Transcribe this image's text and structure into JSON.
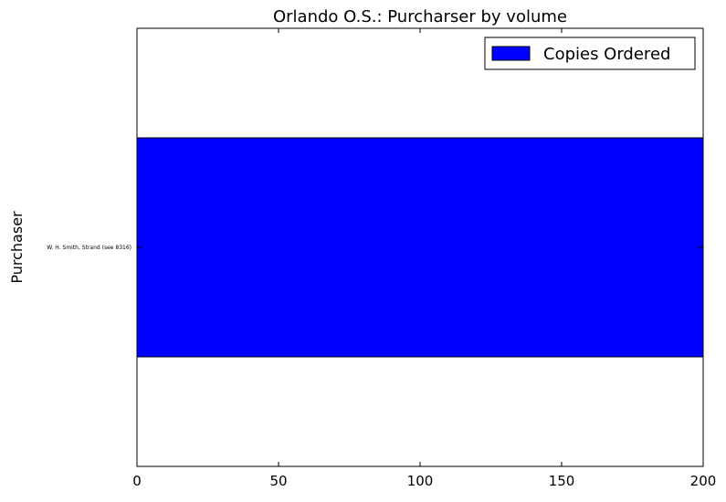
{
  "chart_data": {
    "type": "bar",
    "orientation": "horizontal",
    "title": "Orlando O.S.: Purcharser by volume",
    "xlabel": "",
    "ylabel": "Purchaser",
    "categories": [
      "W. H. Smith, Strand (see 8316)"
    ],
    "series": [
      {
        "name": "Copies Ordered",
        "values": [
          200
        ],
        "color": "#0000ff"
      }
    ],
    "xlim": [
      0,
      200
    ],
    "xticks": [
      0,
      50,
      100,
      150,
      200
    ],
    "grid": false,
    "legend_position": "top-right"
  }
}
